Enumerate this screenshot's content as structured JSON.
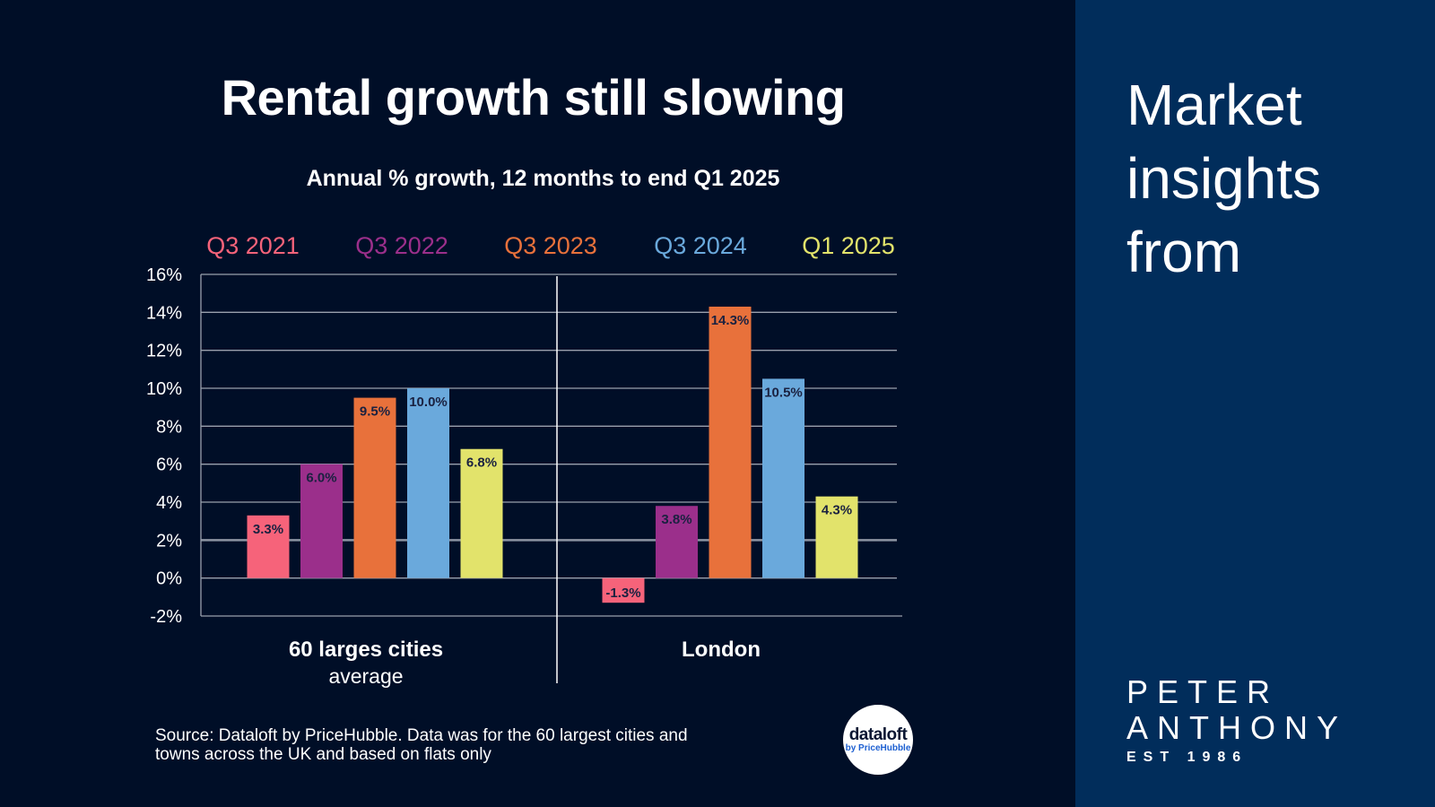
{
  "header": {
    "title": "Rental growth still slowing",
    "subtitle": "Annual % growth, 12 months to end Q1 2025"
  },
  "chart_data": {
    "type": "bar",
    "categories": [
      "60 larges cities",
      "London"
    ],
    "category_sublabels": [
      "average",
      ""
    ],
    "series": [
      {
        "name": "Q3 2021",
        "color": "#f6637a",
        "values": [
          3.3,
          -1.3
        ],
        "labels": [
          "3.3%",
          "-1.3%"
        ]
      },
      {
        "name": "Q3 2022",
        "color": "#9b2f8b",
        "values": [
          6.0,
          3.8
        ],
        "labels": [
          "6.0%",
          "3.8%"
        ]
      },
      {
        "name": "Q3 2023",
        "color": "#e8713b",
        "values": [
          9.5,
          14.3
        ],
        "labels": [
          "9.5%",
          "14.3%"
        ]
      },
      {
        "name": "Q3 2024",
        "color": "#6aa9dc",
        "values": [
          10.0,
          10.5
        ],
        "labels": [
          "10.0%",
          "10.5%"
        ]
      },
      {
        "name": "Q1 2025",
        "color": "#e2e36b",
        "values": [
          6.8,
          4.3
        ],
        "labels": [
          "6.8%",
          "4.3%"
        ]
      }
    ],
    "ylim": [
      -2,
      16
    ],
    "yticks": [
      16,
      14,
      12,
      10,
      8,
      6,
      4,
      2,
      0,
      -2
    ],
    "ytick_labels": [
      "16%",
      "14%",
      "12%",
      "10%",
      "8%",
      "6%",
      "4%",
      "2%",
      "0%",
      "-2%"
    ],
    "grid": true,
    "legend_position": "top"
  },
  "footer": {
    "source": "Source: Dataloft by PriceHubble. Data was for the 60 largest cities and towns across the UK and based on flats only",
    "logo_name": "dataloft",
    "logo_by": "by PriceHubble"
  },
  "sidebar": {
    "heading": "Market insights from",
    "brand_line1": "PETER",
    "brand_line2": "ANTHONY",
    "brand_line3": "EST 1986"
  }
}
